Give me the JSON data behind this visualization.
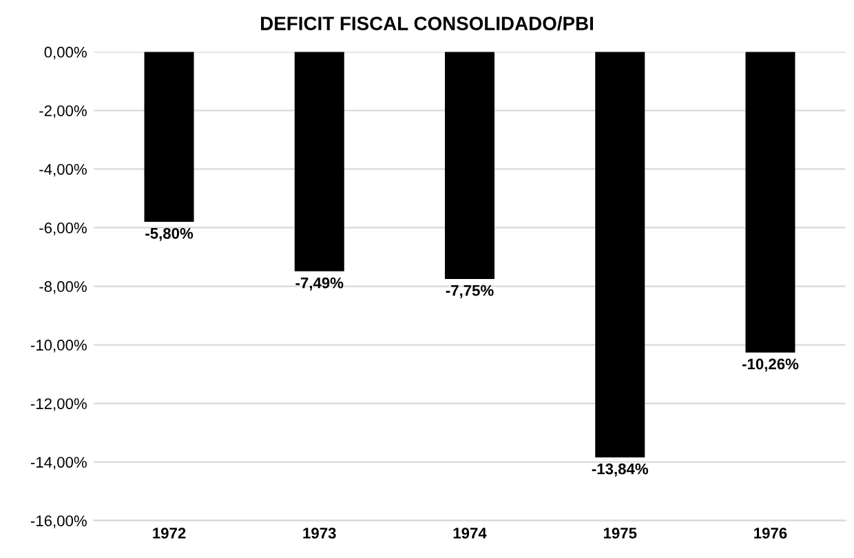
{
  "chart_data": {
    "type": "bar",
    "title": "DEFICIT FISCAL CONSOLIDADO/PBI",
    "categories": [
      "1972",
      "1973",
      "1974",
      "1975",
      "1976"
    ],
    "values": [
      -5.8,
      -7.49,
      -7.75,
      -13.84,
      -10.26
    ],
    "value_labels": [
      "-5,80%",
      "-7,49%",
      "-7,75%",
      "-13,84%",
      "-10,26%"
    ],
    "color": "#000000",
    "ylim": [
      -16,
      0
    ],
    "yticks": [
      {
        "value": 0,
        "label": "0,00%"
      },
      {
        "value": -2,
        "label": "-2,00%"
      },
      {
        "value": -4,
        "label": "-4,00%"
      },
      {
        "value": -6,
        "label": "-6,00%"
      },
      {
        "value": -8,
        "label": "-8,00%"
      },
      {
        "value": -10,
        "label": "-10,00%"
      },
      {
        "value": -12,
        "label": "-12,00%"
      },
      {
        "value": -14,
        "label": "-14,00%"
      },
      {
        "value": -16,
        "label": "-16,00%"
      }
    ],
    "grid": "y",
    "legend": false
  }
}
